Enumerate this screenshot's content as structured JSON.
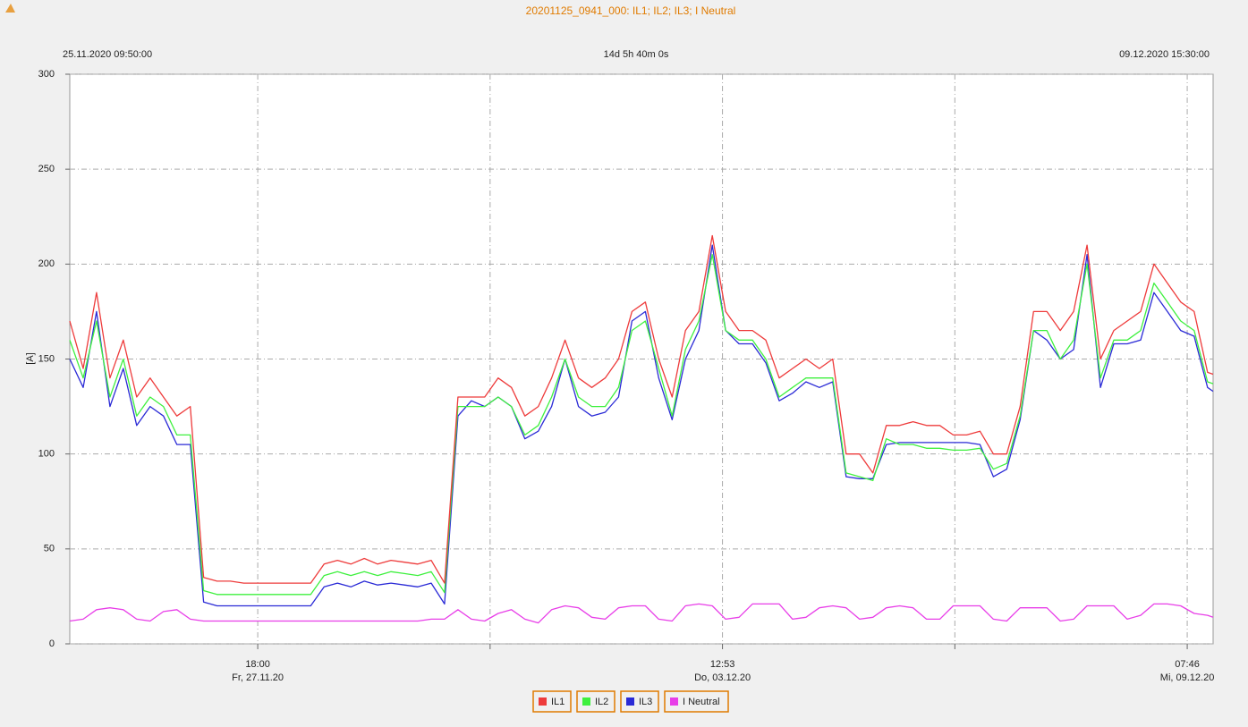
{
  "chart_data": {
    "type": "line",
    "title": "20201125_0941_000: IL1; IL2; IL3; I Neutral",
    "start_label": "25.11.2020 09:50:00",
    "duration_label": "14d 5h 40m 0s",
    "end_label": "09.12.2020 15:30:00",
    "y_label": "[A]",
    "xlim": [
      "2020-11-25T09:50",
      "2020-12-09T15:30"
    ],
    "xticks": [
      {
        "value": "2020-11-27T18:00",
        "label": "18:00",
        "sublabel": "Fr, 27.11.20"
      },
      {
        "value": "2020-12-03T12:53",
        "label": "12:53",
        "sublabel": "Do, 03.12.20"
      },
      {
        "value": "2020-12-09T07:46",
        "label": "07:46",
        "sublabel": "Mi, 09.12.20"
      }
    ],
    "xminor": [
      "2020-11-30T15:26:30",
      "2020-12-06T10:19:30"
    ],
    "ylim": [
      0,
      300
    ],
    "yticks": [
      0,
      50,
      100,
      150,
      200,
      250,
      300
    ],
    "grid": true,
    "legend": "bottom",
    "x": [
      "2020-11-25T09:50",
      "2020-11-25T13:50",
      "2020-11-25T17:50",
      "2020-11-25T21:50",
      "2020-11-26T01:50",
      "2020-11-26T05:50",
      "2020-11-26T09:50",
      "2020-11-26T13:50",
      "2020-11-26T17:50",
      "2020-11-26T21:50",
      "2020-11-27T01:50",
      "2020-11-27T05:50",
      "2020-11-27T09:50",
      "2020-11-27T13:50",
      "2020-11-27T17:50",
      "2020-11-27T21:50",
      "2020-11-28T01:50",
      "2020-11-28T05:50",
      "2020-11-28T09:50",
      "2020-11-28T13:50",
      "2020-11-28T17:50",
      "2020-11-28T21:50",
      "2020-11-29T01:50",
      "2020-11-29T05:50",
      "2020-11-29T09:50",
      "2020-11-29T13:50",
      "2020-11-29T17:50",
      "2020-11-29T21:50",
      "2020-11-30T01:50",
      "2020-11-30T05:50",
      "2020-11-30T09:50",
      "2020-11-30T13:50",
      "2020-11-30T17:50",
      "2020-11-30T21:50",
      "2020-12-01T01:50",
      "2020-12-01T05:50",
      "2020-12-01T09:50",
      "2020-12-01T13:50",
      "2020-12-01T17:50",
      "2020-12-01T21:50",
      "2020-12-02T01:50",
      "2020-12-02T05:50",
      "2020-12-02T09:50",
      "2020-12-02T13:50",
      "2020-12-02T17:50",
      "2020-12-02T21:50",
      "2020-12-03T01:50",
      "2020-12-03T05:50",
      "2020-12-03T09:50",
      "2020-12-03T13:50",
      "2020-12-03T17:50",
      "2020-12-03T21:50",
      "2020-12-04T01:50",
      "2020-12-04T05:50",
      "2020-12-04T09:50",
      "2020-12-04T13:50",
      "2020-12-04T17:50",
      "2020-12-04T21:50",
      "2020-12-05T01:50",
      "2020-12-05T05:50",
      "2020-12-05T09:50",
      "2020-12-05T13:50",
      "2020-12-05T17:50",
      "2020-12-05T21:50",
      "2020-12-06T01:50",
      "2020-12-06T05:50",
      "2020-12-06T09:50",
      "2020-12-06T13:50",
      "2020-12-06T17:50",
      "2020-12-06T21:50",
      "2020-12-07T01:50",
      "2020-12-07T05:50",
      "2020-12-07T09:50",
      "2020-12-07T13:50",
      "2020-12-07T17:50",
      "2020-12-07T21:50",
      "2020-12-08T01:50",
      "2020-12-08T05:50",
      "2020-12-08T09:50",
      "2020-12-08T13:50",
      "2020-12-08T17:50",
      "2020-12-08T21:50",
      "2020-12-09T01:50",
      "2020-12-09T05:50",
      "2020-12-09T09:50",
      "2020-12-09T13:50",
      "2020-12-09T15:30"
    ],
    "series": [
      {
        "name": "IL1",
        "color": "#ee3b3b",
        "values": [
          170,
          145,
          185,
          140,
          160,
          130,
          140,
          130,
          120,
          125,
          35,
          33,
          33,
          32,
          32,
          32,
          32,
          32,
          32,
          42,
          44,
          42,
          45,
          42,
          44,
          43,
          42,
          44,
          32,
          130,
          130,
          130,
          140,
          135,
          120,
          125,
          140,
          160,
          140,
          135,
          140,
          150,
          175,
          180,
          150,
          130,
          165,
          175,
          215,
          175,
          165,
          165,
          160,
          140,
          145,
          150,
          145,
          150,
          100,
          100,
          90,
          115,
          115,
          117,
          115,
          115,
          110,
          110,
          112,
          100,
          100,
          125,
          175,
          175,
          165,
          175,
          210,
          150,
          165,
          170,
          175,
          200,
          190,
          180,
          175,
          143,
          142
        ]
      },
      {
        "name": "IL2",
        "color": "#3ef03e",
        "values": [
          160,
          140,
          170,
          130,
          150,
          120,
          130,
          125,
          110,
          110,
          28,
          26,
          26,
          26,
          26,
          26,
          26,
          26,
          26,
          36,
          38,
          36,
          38,
          36,
          38,
          37,
          36,
          38,
          27,
          125,
          125,
          125,
          130,
          125,
          110,
          115,
          130,
          150,
          130,
          125,
          125,
          135,
          165,
          170,
          145,
          120,
          155,
          170,
          205,
          165,
          160,
          160,
          150,
          130,
          135,
          140,
          140,
          140,
          90,
          88,
          86,
          108,
          105,
          105,
          103,
          103,
          102,
          102,
          103,
          92,
          95,
          120,
          165,
          165,
          150,
          160,
          200,
          140,
          160,
          160,
          165,
          190,
          180,
          170,
          165,
          138,
          137
        ]
      },
      {
        "name": "IL3",
        "color": "#2a2ad6",
        "values": [
          150,
          135,
          175,
          125,
          145,
          115,
          125,
          120,
          105,
          105,
          22,
          20,
          20,
          20,
          20,
          20,
          20,
          20,
          20,
          30,
          32,
          30,
          33,
          31,
          32,
          31,
          30,
          32,
          21,
          120,
          128,
          125,
          130,
          125,
          108,
          112,
          125,
          150,
          125,
          120,
          122,
          130,
          170,
          175,
          140,
          118,
          150,
          165,
          210,
          165,
          158,
          158,
          148,
          128,
          132,
          138,
          135,
          138,
          88,
          87,
          87,
          105,
          106,
          106,
          106,
          106,
          106,
          106,
          105,
          88,
          92,
          118,
          165,
          160,
          150,
          155,
          205,
          135,
          158,
          158,
          160,
          185,
          175,
          165,
          162,
          135,
          133
        ]
      },
      {
        "name": "I Neutral",
        "color": "#e83ee8",
        "values": [
          12,
          13,
          18,
          19,
          18,
          13,
          12,
          17,
          18,
          13,
          12,
          12,
          12,
          12,
          12,
          12,
          12,
          12,
          12,
          12,
          12,
          12,
          12,
          12,
          12,
          12,
          12,
          13,
          13,
          18,
          13,
          12,
          16,
          18,
          13,
          11,
          18,
          20,
          19,
          14,
          13,
          19,
          20,
          20,
          13,
          12,
          20,
          21,
          20,
          13,
          14,
          21,
          21,
          21,
          13,
          14,
          19,
          20,
          19,
          13,
          14,
          19,
          20,
          19,
          13,
          13,
          20,
          20,
          20,
          13,
          12,
          19,
          19,
          19,
          12,
          13,
          20,
          20,
          20,
          13,
          15,
          21,
          21,
          20,
          16,
          15,
          14
        ]
      }
    ]
  }
}
